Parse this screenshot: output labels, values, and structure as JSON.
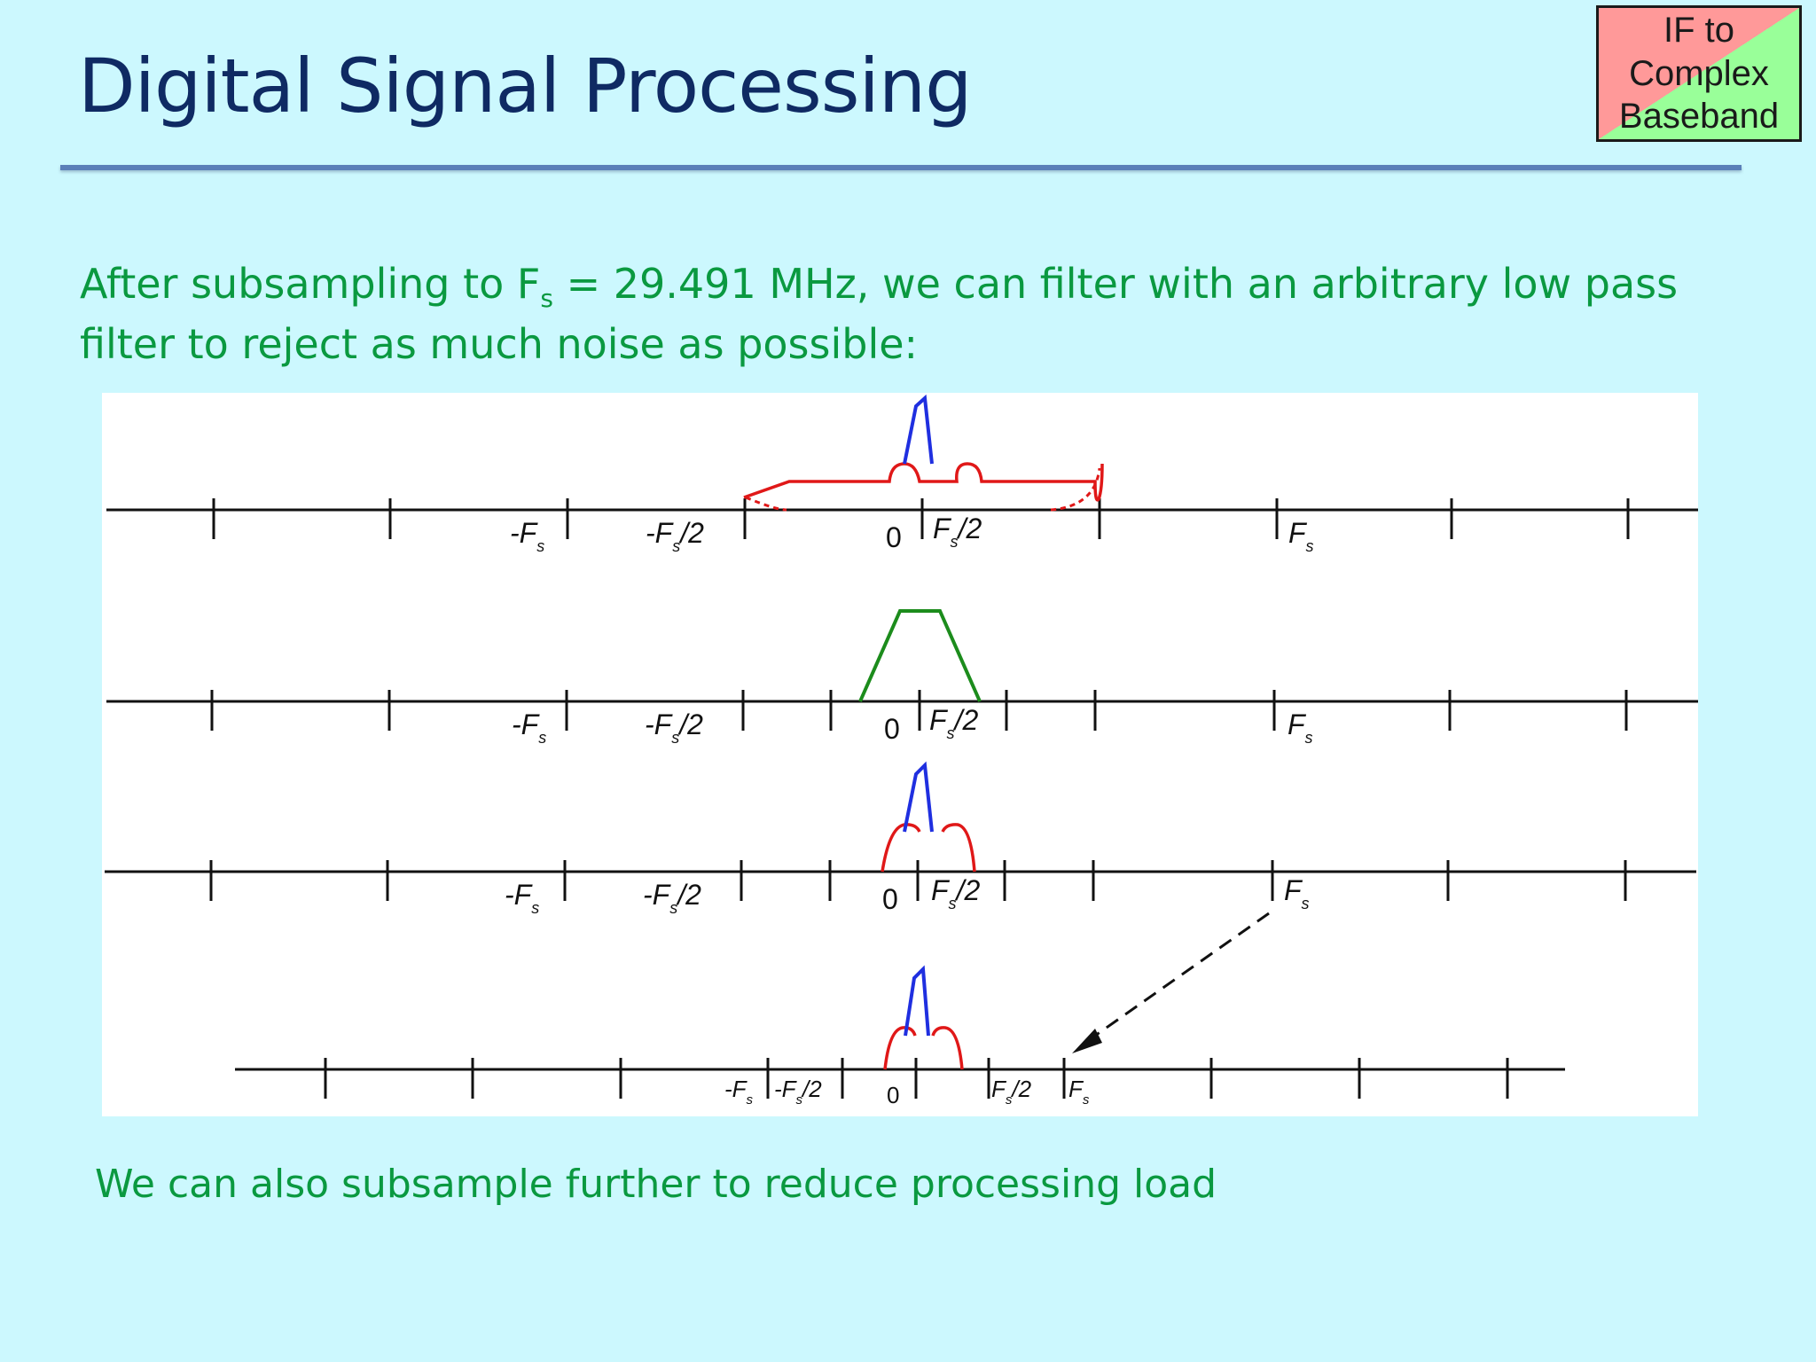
{
  "header": {
    "title": "Digital Signal Processing",
    "badge": {
      "lines": [
        "IF to",
        "Complex",
        "Baseband"
      ]
    }
  },
  "intro": {
    "part1": "After subsampling to F",
    "sub": "s",
    "part2": " = 29.491 MHz, we can filter with an arbitrary low pass filter to reject as much noise as possible:"
  },
  "diagram": {
    "axis_labels": {
      "neg_fs": "-F",
      "neg_fs_half": "-F",
      "zero": "0",
      "fs_half": "F",
      "fs": "F",
      "sub": "s",
      "half_suffix": "/2"
    },
    "colors": {
      "signal": "#1f2fe0",
      "noise": "#e01818",
      "filter": "#1c8c1c",
      "axis": "#111111"
    }
  },
  "footer": {
    "text": "We can also subsample further to reduce processing load"
  }
}
